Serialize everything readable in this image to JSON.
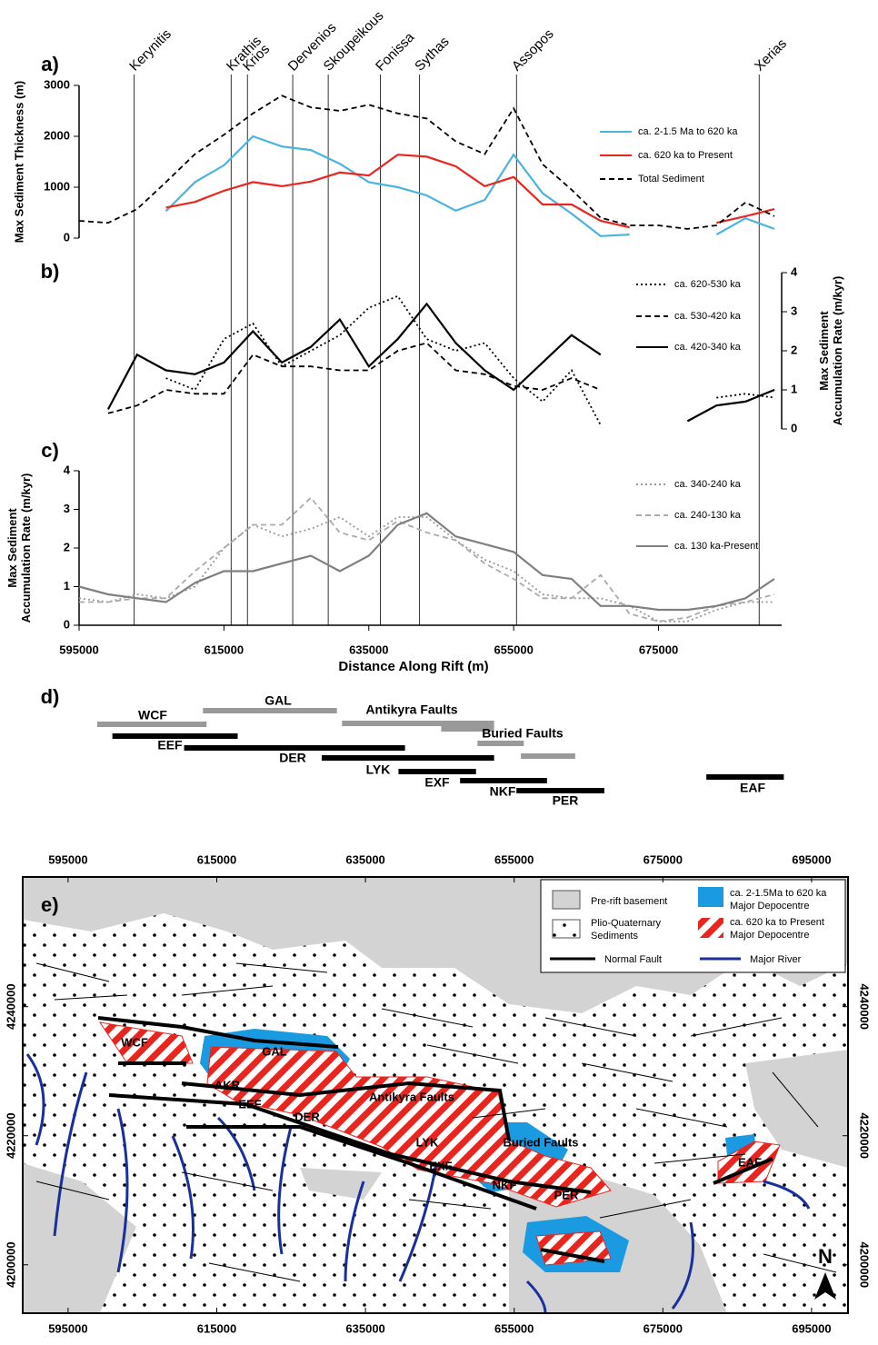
{
  "chart_data": [
    {
      "type": "line",
      "panel_label": "a)",
      "ylabel": [
        "Max Sediment Thickness (m)"
      ],
      "yaxis_side": "left",
      "xlim": [
        595000,
        692000
      ],
      "ylim": [
        0,
        3000
      ],
      "yticks": [
        0,
        1000,
        2000,
        3000
      ],
      "reference_lines": [
        {
          "label": "Kerynitis",
          "x": 602600
        },
        {
          "label": "Krathis",
          "x": 616000
        },
        {
          "label": "Krios",
          "x": 618250
        },
        {
          "label": "Dervenios",
          "x": 624500
        },
        {
          "label": "Skoupeikous",
          "x": 629400
        },
        {
          "label": "Fonissa",
          "x": 636600
        },
        {
          "label": "Sythas",
          "x": 642000
        },
        {
          "label": "Assopos",
          "x": 655400
        },
        {
          "label": "Xerias",
          "x": 688900
        }
      ],
      "x": [
        595000,
        599000,
        603000,
        607000,
        611000,
        615000,
        619000,
        623000,
        627000,
        631000,
        635000,
        639000,
        643000,
        647000,
        651000,
        655000,
        659000,
        663000,
        667000,
        671000,
        675000,
        679000,
        683000,
        687000,
        691000
      ],
      "series": [
        {
          "name": "ca. 2-1.5 Ma to 620 ka",
          "color": "#4bb3e0",
          "dash": "solid",
          "values": [
            null,
            null,
            null,
            530,
            1100,
            1430,
            2000,
            1800,
            1730,
            1460,
            1100,
            1000,
            840,
            540,
            750,
            1640,
            880,
            480,
            40,
            70,
            null,
            null,
            70,
            390,
            180
          ]
        },
        {
          "name": "ca. 620 ka to Present",
          "color": "#e8261f",
          "dash": "solid",
          "values": [
            null,
            null,
            null,
            600,
            710,
            930,
            1100,
            1020,
            1110,
            1290,
            1230,
            1640,
            1600,
            1410,
            1020,
            1200,
            660,
            660,
            340,
            210,
            null,
            null,
            300,
            430,
            570
          ]
        },
        {
          "name": "Total Sediment",
          "color": "#000000",
          "dash": "dashed",
          "values": [
            340,
            300,
            570,
            1100,
            1650,
            2030,
            2450,
            2800,
            2570,
            2500,
            2620,
            2450,
            2350,
            1900,
            1650,
            2550,
            1450,
            950,
            400,
            250,
            250,
            180,
            250,
            700,
            430
          ]
        }
      ]
    },
    {
      "type": "line",
      "panel_label": "b)",
      "ylabel": [
        "Max  Sediment",
        "Accumulation Rate (m/kyr)"
      ],
      "yaxis_side": "right",
      "xlim": [
        595000,
        692000
      ],
      "ylim": [
        0,
        4
      ],
      "yticks": [
        0,
        1,
        2,
        3,
        4
      ],
      "x": [
        595000,
        599000,
        603000,
        607000,
        611000,
        615000,
        619000,
        623000,
        627000,
        631000,
        635000,
        639000,
        643000,
        647000,
        651000,
        655000,
        659000,
        663000,
        667000,
        671000,
        675000,
        679000,
        683000,
        687000,
        691000
      ],
      "series": [
        {
          "name": "ca. 620-530 ka",
          "color": "#000000",
          "dash": "dotted",
          "values": [
            null,
            null,
            null,
            1.3,
            1.0,
            2.3,
            2.7,
            1.6,
            2.0,
            2.4,
            3.1,
            3.4,
            2.3,
            2.0,
            2.2,
            1.3,
            0.7,
            1.5,
            0.1,
            null,
            null,
            null,
            0.8,
            0.9,
            0.8
          ]
        },
        {
          "name": "ca. 530-420 ka",
          "color": "#000000",
          "dash": "dashed",
          "values": [
            null,
            0.4,
            0.6,
            1.0,
            0.9,
            0.9,
            1.9,
            1.6,
            1.6,
            1.5,
            1.5,
            2.0,
            2.2,
            1.5,
            1.4,
            1.1,
            1.0,
            1.3,
            1.0,
            null,
            null,
            0.2,
            0.6,
            0.7,
            1.0
          ]
        },
        {
          "name": "ca. 420-340 ka",
          "color": "#000000",
          "dash": "solid",
          "values": [
            null,
            0.5,
            1.9,
            1.5,
            1.4,
            1.7,
            2.5,
            1.7,
            2.1,
            2.8,
            1.6,
            2.3,
            3.2,
            2.2,
            1.5,
            1.0,
            1.7,
            2.4,
            1.9,
            null,
            null,
            0.2,
            0.6,
            0.7,
            1.0
          ]
        }
      ]
    },
    {
      "type": "line",
      "panel_label": "c)",
      "ylabel": [
        "Max  Sediment",
        "Accumulation Rate (m/kyr)"
      ],
      "yaxis_side": "left",
      "xlabel": "Distance Along Rift (m)",
      "xlim": [
        595000,
        692000
      ],
      "xticks": [
        595000,
        615000,
        635000,
        655000,
        675000
      ],
      "ylim": [
        0,
        4
      ],
      "yticks": [
        0,
        1,
        2,
        3,
        4
      ],
      "x": [
        595000,
        599000,
        603000,
        607000,
        611000,
        615000,
        619000,
        623000,
        627000,
        631000,
        635000,
        639000,
        643000,
        647000,
        651000,
        655000,
        659000,
        663000,
        667000,
        671000,
        675000,
        679000,
        683000,
        687000,
        691000
      ],
      "series": [
        {
          "name": "ca. 340-240 ka",
          "color": "#999999",
          "dash": "dotted",
          "values": [
            0.7,
            0.6,
            0.8,
            0.7,
            1.0,
            2.0,
            2.6,
            2.3,
            2.5,
            2.8,
            2.3,
            2.8,
            2.8,
            2.2,
            1.7,
            1.4,
            0.8,
            0.7,
            0.7,
            0.5,
            0.1,
            0.1,
            0.4,
            0.6,
            0.6
          ]
        },
        {
          "name": "ca. 240-130 ka",
          "color": "#aaaaaa",
          "dash": "dashed",
          "values": [
            0.6,
            0.6,
            0.7,
            0.7,
            1.4,
            2.0,
            2.6,
            2.6,
            3.3,
            2.4,
            2.2,
            2.7,
            2.4,
            2.2,
            1.6,
            1.2,
            0.7,
            0.7,
            1.3,
            0.3,
            0.1,
            0.2,
            0.5,
            0.6,
            0.8
          ]
        },
        {
          "name": "ca. 130 ka-Present",
          "color": "#808080",
          "dash": "solid",
          "values": [
            1.0,
            0.8,
            0.7,
            0.6,
            1.1,
            1.4,
            1.4,
            1.6,
            1.8,
            1.4,
            1.8,
            2.6,
            2.9,
            2.3,
            2.1,
            1.9,
            1.3,
            1.2,
            0.5,
            0.5,
            0.4,
            0.4,
            0.5,
            0.7,
            1.2
          ]
        }
      ]
    },
    {
      "type": "range",
      "panel_label": "d)",
      "xlim": [
        595000,
        692000
      ],
      "bars": [
        {
          "label": "WCF",
          "color": "#999999",
          "start": 597500,
          "end": 612600
        },
        {
          "label": "GAL",
          "color": "#999999",
          "start": 612100,
          "end": 630600
        },
        {
          "label": null,
          "color": "#000000",
          "start": 599600,
          "end": 616900
        },
        {
          "label": "EEF",
          "color": "#000000",
          "start": 609500,
          "end": 640000
        },
        {
          "label": "Antikyra Faults",
          "color": "#999999",
          "start": 631300,
          "end": 652300
        },
        {
          "label": null,
          "color": "#999999",
          "start": 645000,
          "end": 652300
        },
        {
          "label": "Buried Faults",
          "color": "#999999",
          "start": 650000,
          "end": 656400
        },
        {
          "label": null,
          "color": "#999999",
          "start": 656000,
          "end": 663500
        },
        {
          "label": "DER",
          "color": "#000000",
          "start": 628500,
          "end": 652300
        },
        {
          "label": "LYK",
          "color": "#000000",
          "start": 639100,
          "end": 649800
        },
        {
          "label": "EXF",
          "color": "#000000",
          "start": 647600,
          "end": 659600
        },
        {
          "label": "NKF",
          "color": "#000000",
          "start": 655400,
          "end": 667500
        },
        {
          "label": "PER",
          "color": "#000000",
          "start": 655400,
          "end": 667500
        },
        {
          "label": "EAF",
          "color": "#000000",
          "start": 681600,
          "end": 692300
        }
      ]
    }
  ],
  "map": {
    "panel_label": "e)",
    "xlim": [
      588900,
      699900
    ],
    "ylim": [
      4192500,
      4260100
    ],
    "xticks": [
      595000,
      615000,
      635000,
      655000,
      675000,
      695000
    ],
    "yticks": [
      4200000,
      4220000,
      4240000
    ],
    "fault_labels": [
      "WCF",
      "GAL",
      "AKR",
      "EEF",
      "DER",
      "Antikyra Faults",
      "LYK",
      "EXF",
      "Buried Faults",
      "NKF",
      "PER",
      "EAF"
    ],
    "legend": {
      "basement": "Pre-rift basement",
      "sediments": [
        "Plio-Quaternary",
        "Sediments"
      ],
      "old_depocentre": [
        "ca. 2-1.5Ma to 620 ka",
        "Major Depocentre"
      ],
      "young_depocentre": [
        "ca. 620 ka to Present",
        "Major Depocentre"
      ],
      "fault": "Normal Fault",
      "river": "Major River"
    },
    "north": "N"
  }
}
